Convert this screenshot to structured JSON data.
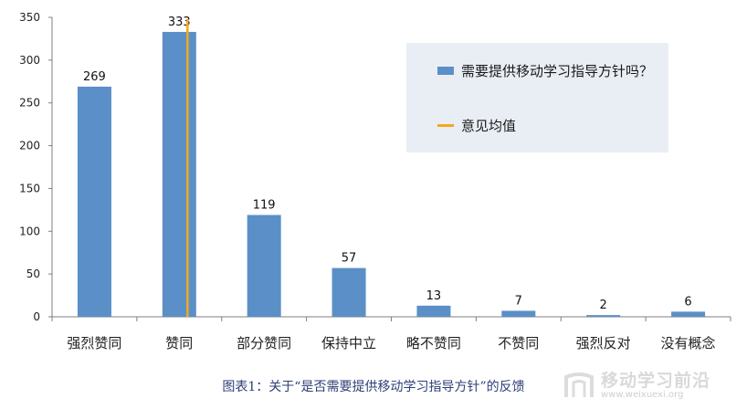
{
  "chart_data": {
    "type": "bar",
    "categories": [
      "强烈赞同",
      "赞同",
      "部分赞同",
      "保持中立",
      "略不赞同",
      "不赞同",
      "强烈反对",
      "没有概念"
    ],
    "series": [
      {
        "name": "需要提供移动学习指导方针吗？",
        "values": [
          269,
          333,
          119,
          57,
          13,
          7,
          2,
          6
        ],
        "color": "#5b8fc7"
      }
    ],
    "reference_line": {
      "name": "意见均值",
      "category": "赞同",
      "color": "#f4a81d"
    },
    "yticks": [
      0,
      50,
      100,
      150,
      200,
      250,
      300,
      350
    ],
    "ylim": [
      0,
      350
    ],
    "legend_position": "top-right",
    "grid": false
  },
  "caption": "图表1：关于“是否需要提供移动学习指导方针”的反馈",
  "watermark": {
    "title": "移动学习前沿",
    "url": "www.weixuexi.org"
  }
}
